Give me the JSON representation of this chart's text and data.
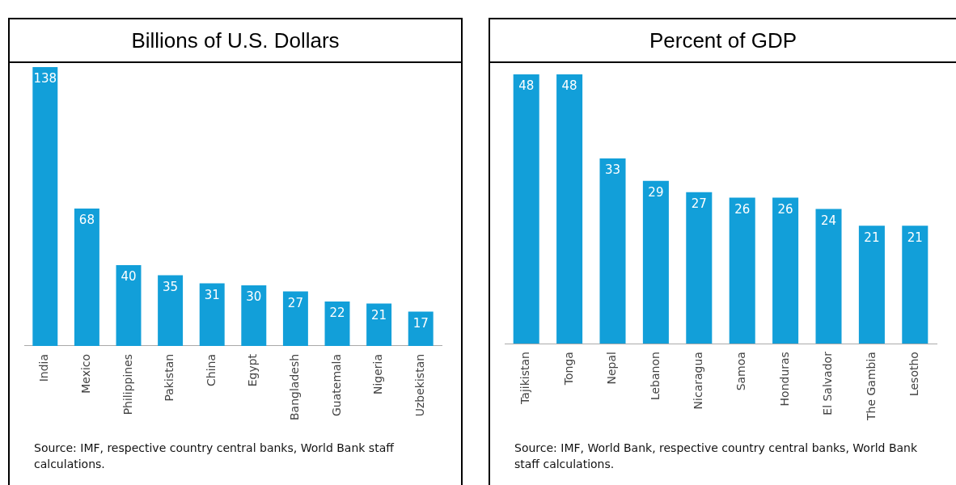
{
  "chart_data": [
    {
      "type": "bar",
      "title": "Billions of U.S. Dollars",
      "categories": [
        "India",
        "Mexico",
        "Philippines",
        "Pakistan",
        "China",
        "Egypt",
        "Bangladesh",
        "Guatemala",
        "Nigeria",
        "Uzbekistan"
      ],
      "values": [
        138,
        68,
        40,
        35,
        31,
        30,
        27,
        22,
        21,
        17
      ],
      "color": "#129fd9",
      "data_labels": true,
      "tick_labels": "x",
      "grid": false,
      "legend": false,
      "annotations": [
        "Source: IMF, respective country central banks, World Bank staff calculations."
      ]
    },
    {
      "type": "bar",
      "title": "Percent of GDP",
      "categories": [
        "Tajikistan",
        "Tonga",
        "Nepal",
        "Lebanon",
        "Nicaragua",
        "Samoa",
        "Honduras",
        "El Salvador",
        "The Gambia",
        "Lesotho"
      ],
      "values": [
        48,
        48,
        33,
        29,
        27,
        26,
        26,
        24,
        21,
        21
      ],
      "color": "#129fd9",
      "data_labels": true,
      "tick_labels": "x",
      "grid": false,
      "legend": false,
      "annotations": [
        "Source: IMF, World Bank, respective country central banks, World Bank staff calculations."
      ]
    }
  ]
}
